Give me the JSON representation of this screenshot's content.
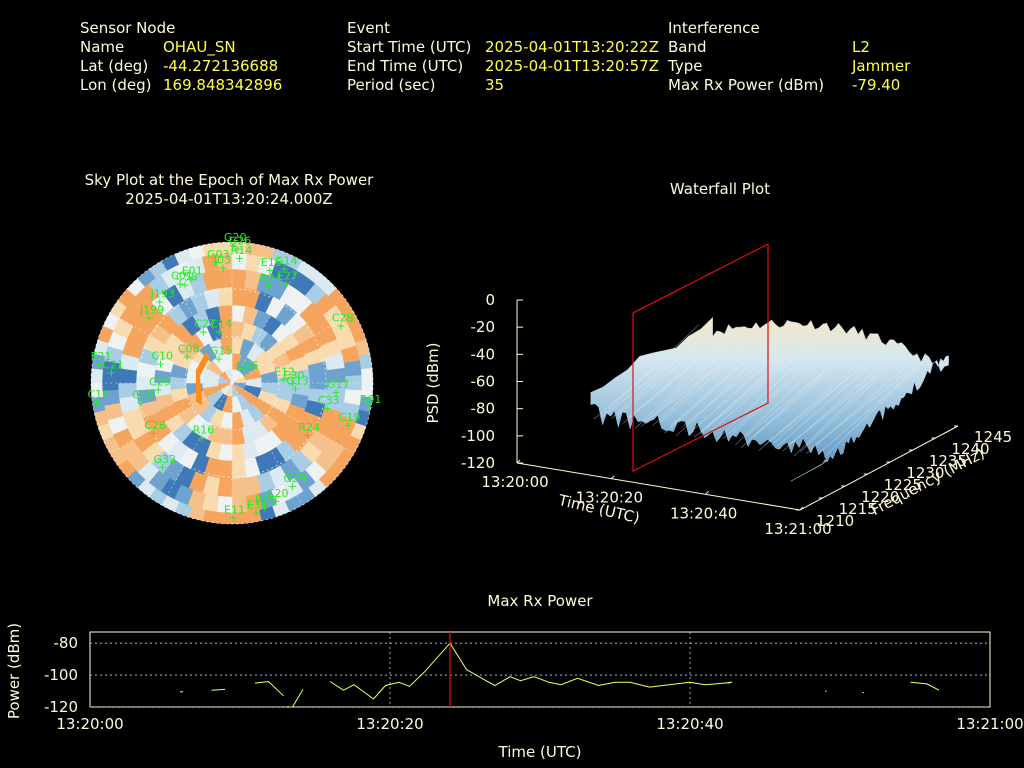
{
  "header": {
    "sensor": {
      "heading": "Sensor Node",
      "name_label": "Name",
      "name_value": "OHAU_SN",
      "lat_label": "Lat (deg)",
      "lat_value": "-44.272136688",
      "lon_label": "Lon (deg)",
      "lon_value": "169.848342896"
    },
    "event": {
      "heading": "Event",
      "start_label": "Start Time (UTC)",
      "start_value": "2025-04-01T13:20:22Z",
      "end_label": "End Time (UTC)",
      "end_value": "2025-04-01T13:20:57Z",
      "period_label": "Period (sec)",
      "period_value": "35"
    },
    "interference": {
      "heading": "Interference",
      "band_label": "Band",
      "band_value": "L2",
      "type_label": "Type",
      "type_value": "Jammer",
      "power_label": "Max Rx Power (dBm)",
      "power_value": "-79.40"
    }
  },
  "colors": {
    "background": "#000000",
    "label_text": "#fffbd8",
    "value_text": "#ffff4a",
    "satellite_label": "#22ee22",
    "marker_line": "#dd1111",
    "trace": "#ffff55",
    "sky_warm": "#f6a55f",
    "sky_light": "#eef2f3",
    "sky_cool": "#3f79b7"
  },
  "chart_data": [
    {
      "type": "scatter",
      "title": "Sky Plot at the Epoch of Max Rx Power",
      "subtitle": "2025-04-01T13:20:24.000Z",
      "projection": "polar",
      "note_colormap": "received power background tiles (orange high, blue low)",
      "satellites": [
        {
          "id": "G20",
          "az": 0,
          "el": 88
        },
        {
          "id": "G26",
          "az": 2,
          "el": 86
        },
        {
          "id": "R14",
          "az": 3,
          "el": 80
        },
        {
          "id": "E15",
          "az": 18,
          "el": 76
        },
        {
          "id": "G14",
          "az": 24,
          "el": 80
        },
        {
          "id": "E27",
          "az": 28,
          "el": 72
        },
        {
          "id": "G24",
          "az": 20,
          "el": 66
        },
        {
          "id": "G03",
          "az": 352,
          "el": 78
        },
        {
          "id": "J03",
          "az": 355,
          "el": 74
        },
        {
          "id": "C58",
          "az": 334,
          "el": 70
        },
        {
          "id": "E01",
          "az": 338,
          "el": 72
        },
        {
          "id": "C01",
          "az": 332,
          "el": 72
        },
        {
          "id": "J193",
          "az": 318,
          "el": 70
        },
        {
          "id": "J199",
          "az": 308,
          "el": 68
        },
        {
          "id": "C28",
          "az": 62,
          "el": 78
        },
        {
          "id": "C27",
          "az": 330,
          "el": 38
        },
        {
          "id": "C14",
          "az": 345,
          "el": 34
        },
        {
          "id": "G15",
          "az": 330,
          "el": 18
        },
        {
          "id": "G06",
          "az": 50,
          "el": 10
        },
        {
          "id": "C29",
          "az": 265,
          "el": 48
        },
        {
          "id": "C08",
          "az": 300,
          "el": 34
        },
        {
          "id": "C10",
          "az": 285,
          "el": 48
        },
        {
          "id": "C21",
          "az": 275,
          "el": 78
        },
        {
          "id": "E21",
          "az": 278,
          "el": 86
        },
        {
          "id": "C16",
          "az": 262,
          "el": 88
        },
        {
          "id": "C09",
          "az": 258,
          "el": 60
        },
        {
          "id": "C26",
          "az": 238,
          "el": 60
        },
        {
          "id": "R16",
          "az": 210,
          "el": 40
        },
        {
          "id": "G32",
          "az": 220,
          "el": 70
        },
        {
          "id": "E30",
          "az": 90,
          "el": 38
        },
        {
          "id": "G17",
          "az": 95,
          "el": 66
        },
        {
          "id": "R01",
          "az": 100,
          "el": 88
        },
        {
          "id": "C33",
          "az": 105,
          "el": 62
        },
        {
          "id": "C19",
          "az": 110,
          "el": 78
        },
        {
          "id": "R24",
          "az": 125,
          "el": 58
        },
        {
          "id": "G13",
          "az": 95,
          "el": 40
        },
        {
          "id": "E12",
          "az": 86,
          "el": 32
        },
        {
          "id": "G29",
          "az": 150,
          "el": 76
        },
        {
          "id": "C20",
          "az": 160,
          "el": 80
        },
        {
          "id": "R30",
          "az": 166,
          "el": 82
        },
        {
          "id": "E11",
          "az": 180,
          "el": 86
        },
        {
          "id": "E34",
          "az": 170,
          "el": 84
        }
      ]
    },
    {
      "type": "surface",
      "title": "Waterfall Plot",
      "xlabel": "Time (UTC)",
      "ylabel": "Frequency (MHz)",
      "zlabel": "PSD (dBm)",
      "x_ticks": [
        "13:20:00",
        "13:20:20",
        "13:20:40",
        "13:21:00"
      ],
      "y_ticks": [
        1210,
        1215,
        1220,
        1225,
        1230,
        1235,
        1240,
        1245
      ],
      "z_ticks": [
        0,
        -20,
        -40,
        -60,
        -80,
        -100,
        -120
      ],
      "xlim": [
        "13:20:00",
        "13:21:00"
      ],
      "ylim": [
        1210,
        1245
      ],
      "zlim": [
        -120,
        0
      ],
      "marker_time": "13:20:24",
      "surface_range": {
        "t_start": "13:20:08",
        "t_end": "13:20:58",
        "psd_min": -100,
        "psd_max": -55
      }
    },
    {
      "type": "line",
      "title": "Max Rx Power",
      "xlabel": "Time (UTC)",
      "ylabel": "Power (dBm)",
      "x_ticks": [
        "13:20:00",
        "13:20:20",
        "13:20:40",
        "13:21:00"
      ],
      "y_ticks": [
        -80,
        -100,
        -120
      ],
      "xlim": [
        0,
        60
      ],
      "ylim": [
        -120,
        -73
      ],
      "grid": true,
      "marker_time_sec": 24,
      "series": [
        {
          "segments": [
            [
              [
                6.0,
                -110.5
              ],
              [
                6.2,
                -110.5
              ]
            ],
            [
              [
                8.1,
                -109.5
              ],
              [
                9.0,
                -109.0
              ]
            ],
            [
              [
                11.0,
                -105.0
              ],
              [
                11.9,
                -104.0
              ],
              [
                12.9,
                -113.0
              ]
            ],
            [
              [
                13.2,
                -119.8
              ]
            ],
            [
              [
                13.5,
                -120.0
              ],
              [
                14.2,
                -109.0
              ]
            ],
            [
              [
                16.0,
                -104.0
              ],
              [
                16.9,
                -109.5
              ],
              [
                17.6,
                -106.0
              ],
              [
                18.9,
                -115.0
              ],
              [
                19.7,
                -106.5
              ],
              [
                20.6,
                -104.5
              ],
              [
                21.3,
                -107.0
              ],
              [
                22.3,
                -98.0
              ],
              [
                24.0,
                -80.0
              ],
              [
                25.1,
                -96.5
              ],
              [
                26.4,
                -103.5
              ],
              [
                27.0,
                -106.5
              ],
              [
                28.0,
                -101.0
              ],
              [
                28.7,
                -103.5
              ],
              [
                29.6,
                -101.0
              ],
              [
                30.6,
                -104.5
              ],
              [
                31.4,
                -106.0
              ],
              [
                32.5,
                -102.0
              ],
              [
                33.9,
                -106.5
              ],
              [
                35.0,
                -104.5
              ],
              [
                36.0,
                -104.5
              ],
              [
                37.3,
                -107.5
              ],
              [
                38.6,
                -106.0
              ],
              [
                40.0,
                -104.5
              ],
              [
                41.0,
                -106.0
              ],
              [
                42.3,
                -105.0
              ]
            ],
            [
              [
                42.3,
                -105.0
              ],
              [
                42.7,
                -104.5
              ]
            ],
            [
              [
                42.5,
                -105.0
              ],
              [
                42.8,
                -104.5
              ]
            ],
            [
              [
                49.0,
                -110.0
              ],
              [
                49.1,
                -110.2
              ]
            ],
            [
              [
                51.5,
                -111.0
              ],
              [
                51.6,
                -111.0
              ]
            ],
            [
              [
                54.7,
                -104.5
              ],
              [
                55.8,
                -105.5
              ],
              [
                56.6,
                -109.5
              ]
            ],
            [
              [
                61.1,
                -111.0
              ],
              [
                62.3,
                -109.0
              ]
            ]
          ]
        }
      ]
    }
  ]
}
